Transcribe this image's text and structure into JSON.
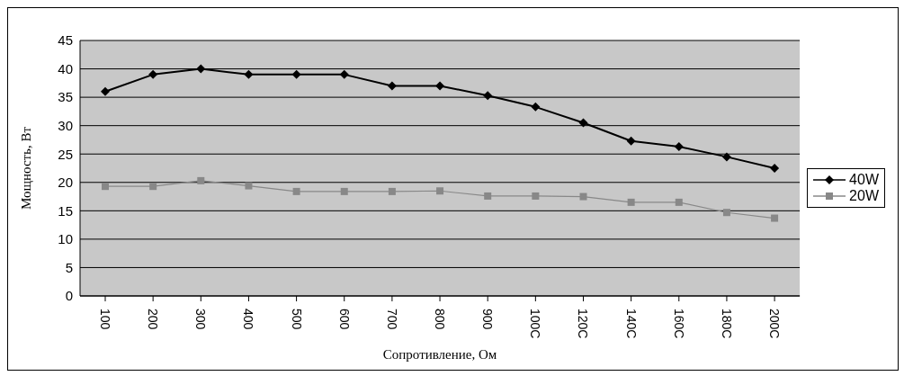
{
  "chart_data": {
    "type": "line",
    "xlabel": "Сопротивление, Ом",
    "ylabel": "Мощность, Вт",
    "categories": [
      "100",
      "200",
      "300",
      "400",
      "500",
      "600",
      "700",
      "800",
      "900",
      "100C",
      "120C",
      "140C",
      "160C",
      "180C",
      "200C"
    ],
    "series": [
      {
        "name": "40W",
        "color": "#000000",
        "marker": "diamond",
        "values": [
          36,
          39,
          40,
          39,
          39,
          39,
          37,
          37,
          35.3,
          33.3,
          30.5,
          27.3,
          26.3,
          24.5,
          22.5
        ]
      },
      {
        "name": "20W",
        "color": "#888888",
        "marker": "square",
        "values": [
          19.3,
          19.3,
          20.3,
          19.4,
          18.4,
          18.4,
          18.4,
          18.5,
          17.6,
          17.6,
          17.5,
          16.5,
          16.5,
          14.7,
          13.7
        ]
      }
    ],
    "ylim": [
      0,
      45
    ],
    "yticks": [
      0,
      5,
      10,
      15,
      20,
      25,
      30,
      35,
      40,
      45
    ],
    "grid": "y",
    "legend": "right",
    "line_style": "solid"
  }
}
